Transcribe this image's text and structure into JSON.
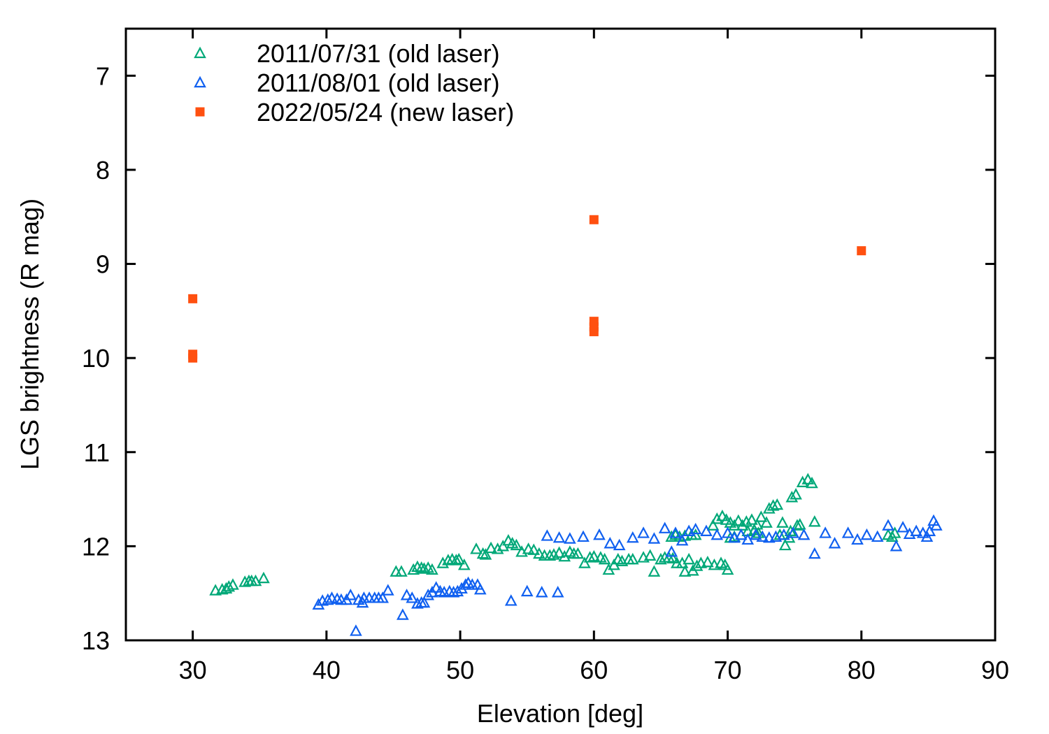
{
  "chart_data": {
    "type": "scatter",
    "xlabel": "Elevation [deg]",
    "ylabel": "LGS brightness (R mag)",
    "xlim": [
      25,
      90
    ],
    "ylim": [
      13,
      6.5
    ],
    "y_inverted": true,
    "grid": false,
    "legend_position": "top-left",
    "xticks": [
      30,
      40,
      50,
      60,
      70,
      80,
      90
    ],
    "yticks": [
      7,
      8,
      9,
      10,
      11,
      12,
      13
    ],
    "series": [
      {
        "name": "2011/07/31 (old laser)",
        "marker": "open-triangle",
        "color": "#00a878",
        "points": [
          [
            31.7,
            12.47
          ],
          [
            32.2,
            12.46
          ],
          [
            32.5,
            12.45
          ],
          [
            32.7,
            12.43
          ],
          [
            33.0,
            12.41
          ],
          [
            33.9,
            12.38
          ],
          [
            34.2,
            12.37
          ],
          [
            34.4,
            12.37
          ],
          [
            34.7,
            12.37
          ],
          [
            35.3,
            12.34
          ],
          [
            45.2,
            12.27
          ],
          [
            45.6,
            12.27
          ],
          [
            46.5,
            12.25
          ],
          [
            46.8,
            12.22
          ],
          [
            47.1,
            12.23
          ],
          [
            47.3,
            12.24
          ],
          [
            47.6,
            12.23
          ],
          [
            47.9,
            12.25
          ],
          [
            48.7,
            12.18
          ],
          [
            49.1,
            12.15
          ],
          [
            49.4,
            12.14
          ],
          [
            49.7,
            12.15
          ],
          [
            49.9,
            12.14
          ],
          [
            50.3,
            12.2
          ],
          [
            51.2,
            12.03
          ],
          [
            51.7,
            12.08
          ],
          [
            51.9,
            12.09
          ],
          [
            52.3,
            12.02
          ],
          [
            52.8,
            12.03
          ],
          [
            53.2,
            12.0
          ],
          [
            53.6,
            11.94
          ],
          [
            53.9,
            11.97
          ],
          [
            54.2,
            11.99
          ],
          [
            54.6,
            12.06
          ],
          [
            55.1,
            12.03
          ],
          [
            55.5,
            12.04
          ],
          [
            55.9,
            12.08
          ],
          [
            56.3,
            12.1
          ],
          [
            56.7,
            12.1
          ],
          [
            57.0,
            12.09
          ],
          [
            57.4,
            12.07
          ],
          [
            57.8,
            12.11
          ],
          [
            58.2,
            12.06
          ],
          [
            58.5,
            12.08
          ],
          [
            58.8,
            12.08
          ],
          [
            59.3,
            12.18
          ],
          [
            59.7,
            12.12
          ],
          [
            60.0,
            12.11
          ],
          [
            60.5,
            12.12
          ],
          [
            60.8,
            12.14
          ],
          [
            61.1,
            12.25
          ],
          [
            61.5,
            12.2
          ],
          [
            61.8,
            12.14
          ],
          [
            62.1,
            12.16
          ],
          [
            62.6,
            12.14
          ],
          [
            62.9,
            12.14
          ],
          [
            63.7,
            12.12
          ],
          [
            64.2,
            12.1
          ],
          [
            64.5,
            12.27
          ],
          [
            65.0,
            12.14
          ],
          [
            65.3,
            12.12
          ],
          [
            65.6,
            12.12
          ],
          [
            65.9,
            12.13
          ],
          [
            66.2,
            12.18
          ],
          [
            66.6,
            12.18
          ],
          [
            66.8,
            12.27
          ],
          [
            67.1,
            12.14
          ],
          [
            67.4,
            12.26
          ],
          [
            67.7,
            12.21
          ],
          [
            68.0,
            12.18
          ],
          [
            68.5,
            12.17
          ],
          [
            69.0,
            12.2
          ],
          [
            69.5,
            12.18
          ],
          [
            69.8,
            12.2
          ],
          [
            70.0,
            12.25
          ],
          [
            65.8,
            11.9
          ],
          [
            66.1,
            11.88
          ],
          [
            66.4,
            11.9
          ],
          [
            66.8,
            11.89
          ],
          [
            67.3,
            11.88
          ],
          [
            67.6,
            11.88
          ],
          [
            68.9,
            11.78
          ],
          [
            69.2,
            11.71
          ],
          [
            69.6,
            11.68
          ],
          [
            69.9,
            11.72
          ],
          [
            70.2,
            11.75
          ],
          [
            70.5,
            11.78
          ],
          [
            70.8,
            11.73
          ],
          [
            71.1,
            11.78
          ],
          [
            71.4,
            11.74
          ],
          [
            71.8,
            11.72
          ],
          [
            72.2,
            11.77
          ],
          [
            72.5,
            11.69
          ],
          [
            72.9,
            11.75
          ],
          [
            73.1,
            11.6
          ],
          [
            73.4,
            11.57
          ],
          [
            73.7,
            11.56
          ],
          [
            74.1,
            11.75
          ],
          [
            74.3,
            11.99
          ],
          [
            74.6,
            11.91
          ],
          [
            74.8,
            11.48
          ],
          [
            75.1,
            11.45
          ],
          [
            75.4,
            11.77
          ],
          [
            75.6,
            11.32
          ],
          [
            76.0,
            11.29
          ],
          [
            76.3,
            11.33
          ],
          [
            76.5,
            11.74
          ],
          [
            70.2,
            11.91
          ],
          [
            70.5,
            11.9
          ],
          [
            71.5,
            11.84
          ],
          [
            72.0,
            11.83
          ],
          [
            72.3,
            11.86
          ],
          [
            73.9,
            11.88
          ],
          [
            74.7,
            11.84
          ],
          [
            75.2,
            11.78
          ],
          [
            82.0,
            11.88
          ],
          [
            82.3,
            11.9
          ],
          [
            82.5,
            11.86
          ]
        ]
      },
      {
        "name": "2011/08/01 (old laser)",
        "marker": "open-triangle",
        "color": "#1060f0",
        "points": [
          [
            39.4,
            12.62
          ],
          [
            39.7,
            12.58
          ],
          [
            40.1,
            12.57
          ],
          [
            40.4,
            12.55
          ],
          [
            40.8,
            12.56
          ],
          [
            41.1,
            12.57
          ],
          [
            41.5,
            12.57
          ],
          [
            41.8,
            12.52
          ],
          [
            42.2,
            12.9
          ],
          [
            42.4,
            12.57
          ],
          [
            42.7,
            12.6
          ],
          [
            42.8,
            12.55
          ],
          [
            43.2,
            12.55
          ],
          [
            43.6,
            12.55
          ],
          [
            43.9,
            12.55
          ],
          [
            44.2,
            12.55
          ],
          [
            44.6,
            12.47
          ],
          [
            45.7,
            12.73
          ],
          [
            46.0,
            12.52
          ],
          [
            46.4,
            12.55
          ],
          [
            46.8,
            12.61
          ],
          [
            47.1,
            12.6
          ],
          [
            47.3,
            12.6
          ],
          [
            47.6,
            12.52
          ],
          [
            47.9,
            12.49
          ],
          [
            48.2,
            12.44
          ],
          [
            48.5,
            12.48
          ],
          [
            48.8,
            12.49
          ],
          [
            49.2,
            12.48
          ],
          [
            49.5,
            12.49
          ],
          [
            49.8,
            12.48
          ],
          [
            50.1,
            12.45
          ],
          [
            50.4,
            12.41
          ],
          [
            50.6,
            12.39
          ],
          [
            50.9,
            12.41
          ],
          [
            51.3,
            12.41
          ],
          [
            51.5,
            12.46
          ],
          [
            53.8,
            12.58
          ],
          [
            55.0,
            12.48
          ],
          [
            56.1,
            12.49
          ],
          [
            57.3,
            12.49
          ],
          [
            56.5,
            11.89
          ],
          [
            57.4,
            11.91
          ],
          [
            58.2,
            11.92
          ],
          [
            59.2,
            11.9
          ],
          [
            60.4,
            11.88
          ],
          [
            61.2,
            11.97
          ],
          [
            61.9,
            11.99
          ],
          [
            62.9,
            11.91
          ],
          [
            63.7,
            11.86
          ],
          [
            64.5,
            11.92
          ],
          [
            65.3,
            11.81
          ],
          [
            65.8,
            12.06
          ],
          [
            66.1,
            11.86
          ],
          [
            66.6,
            11.94
          ],
          [
            67.1,
            11.84
          ],
          [
            67.6,
            11.82
          ],
          [
            68.4,
            11.84
          ],
          [
            69.2,
            11.88
          ],
          [
            70.0,
            11.86
          ],
          [
            70.5,
            11.91
          ],
          [
            71.0,
            11.88
          ],
          [
            71.5,
            11.93
          ],
          [
            72.1,
            11.88
          ],
          [
            72.6,
            11.9
          ],
          [
            73.1,
            11.91
          ],
          [
            73.6,
            11.9
          ],
          [
            74.2,
            11.88
          ],
          [
            74.9,
            11.86
          ],
          [
            75.7,
            11.88
          ],
          [
            76.5,
            12.08
          ],
          [
            77.3,
            11.86
          ],
          [
            78.0,
            11.97
          ],
          [
            79.0,
            11.86
          ],
          [
            79.7,
            11.93
          ],
          [
            80.4,
            11.88
          ],
          [
            81.2,
            11.9
          ],
          [
            82.0,
            11.78
          ],
          [
            82.6,
            12.0
          ],
          [
            83.1,
            11.8
          ],
          [
            83.6,
            11.87
          ],
          [
            84.1,
            11.84
          ],
          [
            84.6,
            11.86
          ],
          [
            84.9,
            11.9
          ],
          [
            85.1,
            11.84
          ],
          [
            85.4,
            11.73
          ],
          [
            85.6,
            11.78
          ]
        ]
      },
      {
        "name": "2022/05/24 (new laser)",
        "marker": "filled-square",
        "color": "#ff5010",
        "points": [
          [
            30,
            9.37
          ],
          [
            30,
            9.96
          ],
          [
            30,
            10.0
          ],
          [
            60,
            8.53
          ],
          [
            60,
            9.61
          ],
          [
            60,
            9.67
          ],
          [
            60,
            9.72
          ],
          [
            80,
            8.86
          ]
        ]
      }
    ]
  }
}
